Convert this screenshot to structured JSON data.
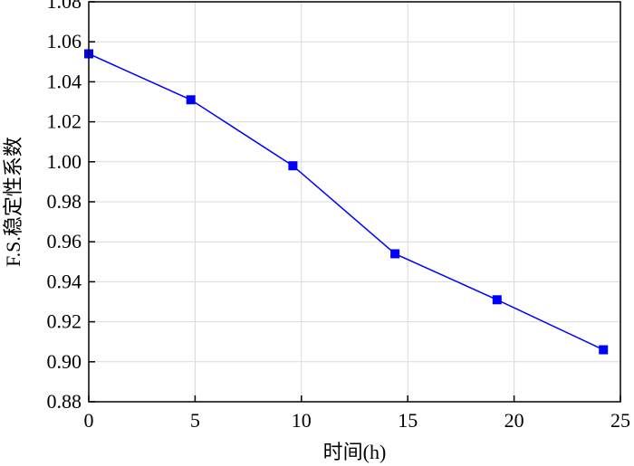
{
  "chart_data": {
    "type": "line",
    "title": "",
    "xlabel": "时间(h)",
    "ylabel": "F.S.稳定性系数",
    "xlim": [
      0,
      25
    ],
    "ylim": [
      0.88,
      1.08
    ],
    "xticks": [
      0,
      5,
      10,
      15,
      20,
      25
    ],
    "xtick_labels": [
      "0",
      "5",
      "10",
      "15",
      "20",
      "25"
    ],
    "yticks": [
      0.88,
      0.9,
      0.92,
      0.94,
      0.96,
      0.98,
      1.0,
      1.02,
      1.04,
      1.06,
      1.08
    ],
    "ytick_labels": [
      "0.88",
      "0.90",
      "0.92",
      "0.94",
      "0.96",
      "0.98",
      "1.00",
      "1.02",
      "1.04",
      "1.06",
      "1.08"
    ],
    "grid": true,
    "legend": "none",
    "series": [
      {
        "x": [
          0,
          4.8,
          9.6,
          14.4,
          19.2,
          24.2
        ],
        "y": [
          1.054,
          1.031,
          0.998,
          0.954,
          0.931,
          0.906
        ],
        "color": "#0000ff",
        "marker": "square"
      }
    ]
  }
}
